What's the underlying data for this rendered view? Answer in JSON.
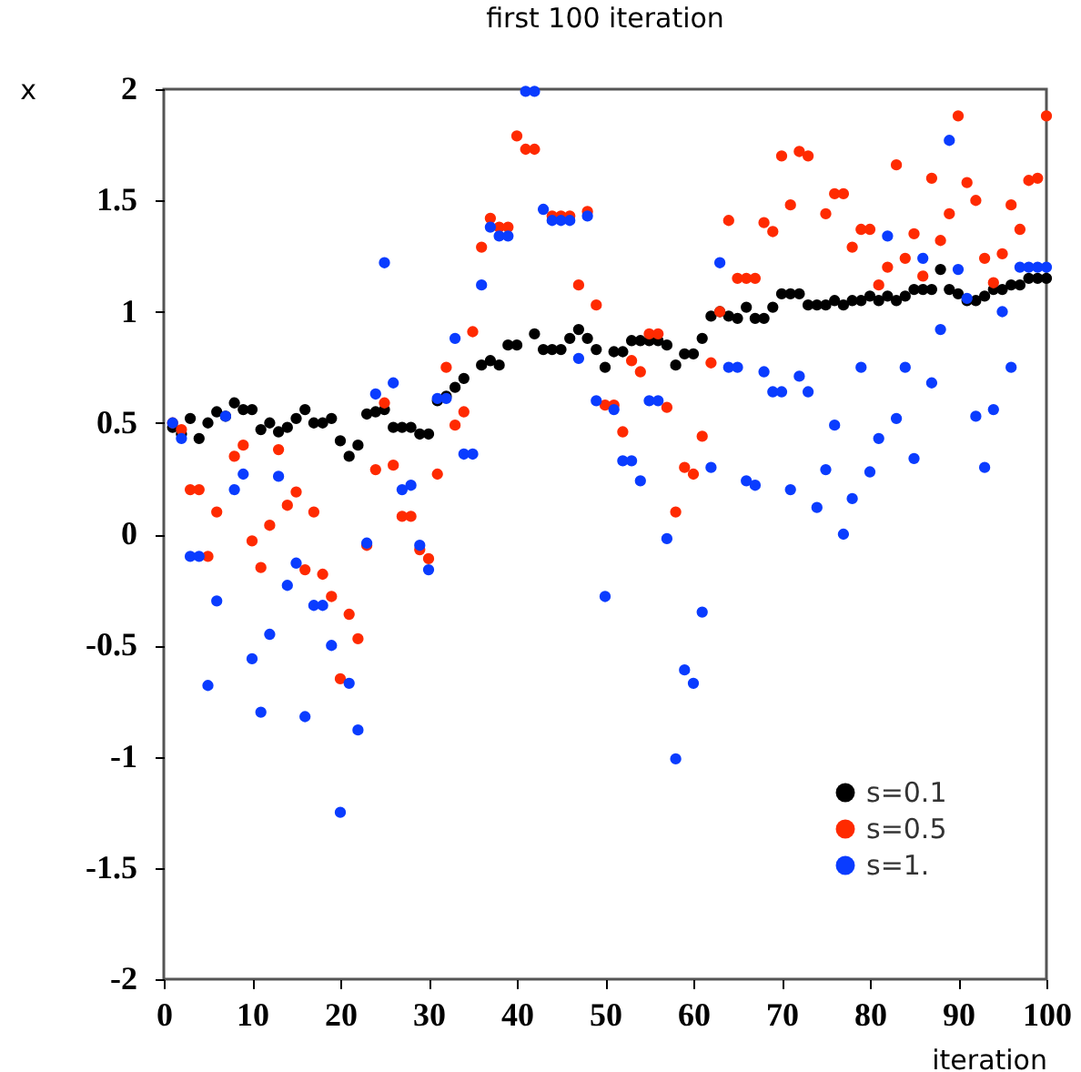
{
  "chart_data": {
    "type": "scatter",
    "title": "first 100 iteration",
    "xlabel": "iteration",
    "ylabel": "x",
    "xlim": [
      0,
      100
    ],
    "xticks": [
      0,
      10,
      20,
      30,
      40,
      50,
      60,
      70,
      80,
      90,
      100
    ],
    "ylim": [
      -2,
      2
    ],
    "yticks": [
      -2,
      -1.5,
      -1,
      -0.5,
      0,
      0.5,
      1,
      1.5,
      2
    ],
    "legend": "bottom right",
    "marker": "circle",
    "series": [
      {
        "name": "s=0.1",
        "color": "#000000",
        "x": [
          1,
          2,
          3,
          4,
          5,
          6,
          7,
          8,
          9,
          10,
          11,
          12,
          13,
          14,
          15,
          16,
          17,
          18,
          19,
          20,
          21,
          22,
          23,
          24,
          25,
          26,
          27,
          28,
          29,
          30,
          31,
          32,
          33,
          34,
          36,
          37,
          38,
          39,
          40,
          42,
          43,
          44,
          45,
          46,
          47,
          48,
          49,
          50,
          51,
          52,
          53,
          54,
          55,
          56,
          57,
          58,
          59,
          60,
          61,
          62,
          63,
          64,
          65,
          66,
          67,
          68,
          69,
          70,
          71,
          72,
          73,
          74,
          75,
          76,
          77,
          78,
          79,
          80,
          81,
          82,
          83,
          84,
          85,
          86,
          87,
          88,
          89,
          90,
          91,
          92,
          93,
          94,
          95,
          96,
          97,
          98,
          99,
          100
        ],
        "values": [
          0.48,
          0.45,
          0.52,
          0.43,
          0.5,
          0.55,
          0.53,
          0.59,
          0.56,
          0.56,
          0.47,
          0.5,
          0.46,
          0.48,
          0.52,
          0.56,
          0.5,
          0.5,
          0.52,
          0.42,
          0.35,
          0.4,
          0.54,
          0.55,
          0.56,
          0.48,
          0.48,
          0.48,
          0.45,
          0.45,
          0.6,
          0.62,
          0.66,
          0.7,
          0.76,
          0.78,
          0.76,
          0.85,
          0.85,
          0.9,
          0.83,
          0.83,
          0.83,
          0.88,
          0.92,
          0.88,
          0.83,
          0.75,
          0.82,
          0.82,
          0.87,
          0.87,
          0.87,
          0.87,
          0.85,
          0.76,
          0.81,
          0.81,
          0.88,
          0.98,
          1.0,
          0.98,
          0.97,
          1.02,
          0.97,
          0.97,
          1.02,
          1.08,
          1.08,
          1.08,
          1.03,
          1.03,
          1.03,
          1.05,
          1.03,
          1.05,
          1.05,
          1.07,
          1.05,
          1.07,
          1.05,
          1.07,
          1.1,
          1.1,
          1.1,
          1.19,
          1.1,
          1.08,
          1.05,
          1.05,
          1.07,
          1.1,
          1.1,
          1.12,
          1.12,
          1.15,
          1.15,
          1.15
        ]
      },
      {
        "name": "s=0.5",
        "color": "#ff2a00",
        "x": [
          1,
          2,
          3,
          4,
          5,
          6,
          8,
          9,
          10,
          11,
          12,
          13,
          14,
          15,
          16,
          17,
          18,
          19,
          20,
          21,
          22,
          23,
          24,
          25,
          26,
          27,
          28,
          29,
          30,
          31,
          32,
          33,
          34,
          35,
          36,
          37,
          38,
          39,
          40,
          41,
          42,
          44,
          45,
          46,
          47,
          48,
          49,
          50,
          51,
          52,
          53,
          54,
          55,
          56,
          57,
          58,
          59,
          60,
          61,
          62,
          63,
          64,
          65,
          66,
          67,
          68,
          69,
          70,
          71,
          72,
          73,
          75,
          76,
          77,
          78,
          79,
          80,
          81,
          82,
          83,
          84,
          85,
          86,
          87,
          88,
          89,
          90,
          91,
          92,
          93,
          94,
          95,
          96,
          97,
          98,
          99,
          100
        ],
        "values": [
          0.5,
          0.47,
          0.2,
          0.2,
          -0.1,
          0.1,
          0.35,
          0.4,
          -0.03,
          -0.15,
          0.04,
          0.38,
          0.13,
          0.19,
          -0.16,
          0.1,
          -0.18,
          -0.28,
          -0.65,
          -0.36,
          -0.47,
          -0.05,
          0.29,
          0.59,
          0.31,
          0.08,
          0.08,
          -0.07,
          -0.11,
          0.27,
          0.75,
          0.49,
          0.55,
          0.91,
          1.29,
          1.42,
          1.38,
          1.38,
          1.79,
          1.73,
          1.73,
          1.43,
          1.43,
          1.43,
          1.12,
          1.45,
          1.03,
          0.58,
          0.58,
          0.46,
          0.78,
          0.73,
          0.9,
          0.9,
          0.57,
          0.1,
          0.3,
          0.27,
          0.44,
          0.77,
          1.0,
          1.41,
          1.15,
          1.15,
          1.15,
          1.4,
          1.36,
          1.7,
          1.48,
          1.72,
          1.7,
          1.44,
          1.53,
          1.53,
          1.29,
          1.37,
          1.37,
          1.12,
          1.2,
          1.66,
          1.24,
          1.35,
          1.16,
          1.6,
          1.32,
          1.44,
          1.88,
          1.58,
          1.5,
          1.24,
          1.13,
          1.26,
          1.48,
          1.37,
          1.59,
          1.6,
          1.88
        ]
      },
      {
        "name": "s=1.",
        "color": "#0a3cff",
        "x": [
          1,
          2,
          3,
          4,
          5,
          6,
          7,
          8,
          9,
          10,
          11,
          12,
          13,
          14,
          15,
          16,
          17,
          18,
          19,
          20,
          21,
          22,
          23,
          24,
          25,
          26,
          27,
          28,
          29,
          30,
          31,
          32,
          33,
          34,
          35,
          36,
          37,
          38,
          39,
          41,
          42,
          43,
          44,
          45,
          46,
          47,
          48,
          49,
          50,
          51,
          52,
          53,
          54,
          55,
          56,
          57,
          58,
          59,
          60,
          61,
          62,
          63,
          64,
          65,
          66,
          67,
          68,
          69,
          70,
          71,
          72,
          73,
          74,
          75,
          76,
          77,
          78,
          79,
          80,
          81,
          82,
          83,
          84,
          85,
          86,
          87,
          88,
          89,
          90,
          91,
          92,
          93,
          94,
          95,
          96,
          97,
          98,
          99,
          100
        ],
        "values": [
          0.5,
          0.43,
          -0.1,
          -0.1,
          -0.68,
          -0.3,
          0.53,
          0.2,
          0.27,
          -0.56,
          -0.8,
          -0.45,
          0.26,
          -0.23,
          -0.13,
          -0.82,
          -0.32,
          -0.32,
          -0.5,
          -1.25,
          -0.67,
          -0.88,
          -0.04,
          0.63,
          1.22,
          0.68,
          0.2,
          0.22,
          -0.05,
          -0.16,
          0.61,
          0.61,
          0.88,
          0.36,
          0.36,
          1.12,
          1.38,
          1.34,
          1.34,
          1.99,
          1.99,
          1.46,
          1.41,
          1.41,
          1.41,
          0.79,
          1.43,
          0.6,
          -0.28,
          0.56,
          0.33,
          0.33,
          0.24,
          0.6,
          0.6,
          -0.02,
          -1.01,
          -0.61,
          -0.67,
          -0.35,
          0.3,
          1.22,
          0.75,
          0.75,
          0.24,
          0.22,
          0.73,
          0.64,
          0.64,
          0.2,
          0.71,
          0.64,
          0.12,
          0.29,
          0.49,
          0.0,
          0.16,
          0.75,
          0.28,
          0.43,
          1.34,
          0.52,
          0.75,
          0.34,
          1.24,
          0.68,
          0.92,
          1.77,
          1.19,
          1.06,
          0.53,
          0.3,
          0.56,
          1.0,
          0.75,
          1.2,
          1.2,
          1.2,
          1.2
        ]
      }
    ]
  }
}
